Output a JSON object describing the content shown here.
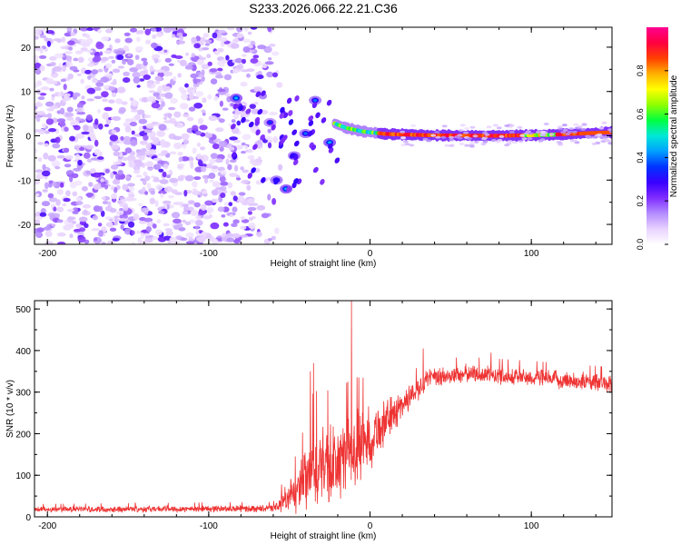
{
  "figure": {
    "title": "S233.2026.066.22.21.C36"
  },
  "chart_data": [
    {
      "type": "heatmap",
      "xlabel": "Height of straight line (km)",
      "ylabel": "Frequency (Hz)",
      "xlim": [
        -208,
        150
      ],
      "ylim": [
        -24.5,
        24.5
      ],
      "xticks": [
        -200,
        -100,
        0,
        100
      ],
      "yticks": [
        -20,
        -10,
        0,
        10,
        20
      ],
      "colorbar": {
        "label": "Normalized spectral amplitude",
        "ticks": [
          0.0,
          0.2,
          0.4,
          0.6,
          0.8
        ],
        "range": [
          0,
          1
        ],
        "colors": [
          "#ffffff",
          "#e8d2ff",
          "#b48cff",
          "#7f2cff",
          "#3800ff",
          "#0033ff",
          "#00a0ff",
          "#00e8d8",
          "#00ff40",
          "#90ff00",
          "#ffff00",
          "#ffb000",
          "#ff4000",
          "#ff0040",
          "#ff0090"
        ]
      },
      "features": {
        "noise_region_x": [
          -208,
          -60
        ],
        "chirp_blobs": [
          {
            "x": -83,
            "f": 8.5,
            "a": 0.35
          },
          {
            "x": -62,
            "f": 3.0,
            "a": 0.25
          },
          {
            "x": -58,
            "f": -10.0,
            "a": 0.3
          },
          {
            "x": -52,
            "f": -12.0,
            "a": 0.35
          },
          {
            "x": -47,
            "f": -4.5,
            "a": 0.3
          },
          {
            "x": -40,
            "f": 0.5,
            "a": 0.3
          },
          {
            "x": -34,
            "f": 8.0,
            "a": 0.3
          },
          {
            "x": -25,
            "f": -1.5,
            "a": 0.35
          }
        ],
        "carrier_line": [
          {
            "x": -22,
            "f": 2.8
          },
          {
            "x": -15,
            "f": 1.8
          },
          {
            "x": -5,
            "f": 1.0
          },
          {
            "x": 10,
            "f": 0.4
          },
          {
            "x": 40,
            "f": 0.1
          },
          {
            "x": 80,
            "f": 0.0
          },
          {
            "x": 110,
            "f": 0.2
          },
          {
            "x": 150,
            "f": 0.8
          }
        ]
      }
    },
    {
      "type": "line",
      "xlabel": "Height of straight line (km)",
      "ylabel": "SNR (10 * v/v)",
      "xlim": [
        -208,
        150
      ],
      "ylim": [
        0,
        520
      ],
      "xticks": [
        -200,
        -100,
        0,
        100
      ],
      "yticks": [
        0,
        100,
        200,
        300,
        400,
        500
      ],
      "series": [
        {
          "name": "SNR",
          "color": "#ee3333",
          "envelope": [
            {
              "x": -208,
              "mean": 18,
              "spread": 8
            },
            {
              "x": -60,
              "mean": 20,
              "spread": 10
            },
            {
              "x": -45,
              "mean": 60,
              "spread": 60
            },
            {
              "x": -35,
              "mean": 110,
              "spread": 120
            },
            {
              "x": -20,
              "mean": 130,
              "spread": 110
            },
            {
              "x": -10,
              "mean": 160,
              "spread": 110
            },
            {
              "x": 0,
              "mean": 190,
              "spread": 90
            },
            {
              "x": 10,
              "mean": 230,
              "spread": 60
            },
            {
              "x": 25,
              "mean": 290,
              "spread": 35
            },
            {
              "x": 35,
              "mean": 330,
              "spread": 30
            },
            {
              "x": 60,
              "mean": 345,
              "spread": 25
            },
            {
              "x": 100,
              "mean": 335,
              "spread": 25
            },
            {
              "x": 150,
              "mean": 320,
              "spread": 25
            }
          ],
          "peaks": [
            {
              "x": -11.5,
              "y": 520
            },
            {
              "x": -35,
              "y": 370
            },
            {
              "x": -37,
              "y": 350
            },
            {
              "x": 33,
              "y": 405
            },
            {
              "x": 75,
              "y": 395
            }
          ]
        }
      ]
    }
  ]
}
